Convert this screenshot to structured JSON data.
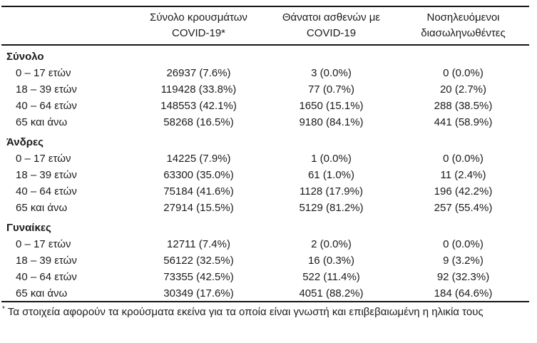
{
  "colors": {
    "text": "#1b1b1b",
    "rule": "#151515",
    "background": "#ffffff"
  },
  "table": {
    "headers": [
      {
        "line1": "Σύνολο κρουσμάτων",
        "line2": "COVID-19*"
      },
      {
        "line1": "Θάνατοι ασθενών με",
        "line2": "COVID-19"
      },
      {
        "line1": "Νοσηλευόμενοι",
        "line2": "διασωληνωθέντες"
      }
    ],
    "sections": [
      {
        "label": "Σύνολο",
        "rows": [
          {
            "label": "0 – 17 ετών",
            "cases": "26937 (7.6%)",
            "deaths": "3 (0.0%)",
            "intubated": "0 (0.0%)"
          },
          {
            "label": "18 – 39 ετών",
            "cases": "119428 (33.8%)",
            "deaths": "77 (0.7%)",
            "intubated": "20 (2.7%)"
          },
          {
            "label": "40 – 64 ετών",
            "cases": "148553 (42.1%)",
            "deaths": "1650 (15.1%)",
            "intubated": "288 (38.5%)"
          },
          {
            "label": "65 και άνω",
            "cases": "58268 (16.5%)",
            "deaths": "9180 (84.1%)",
            "intubated": "441 (58.9%)"
          }
        ]
      },
      {
        "label": "Άνδρες",
        "rows": [
          {
            "label": "0 – 17 ετών",
            "cases": "14225 (7.9%)",
            "deaths": "1 (0.0%)",
            "intubated": "0 (0.0%)"
          },
          {
            "label": "18 – 39 ετών",
            "cases": "63300 (35.0%)",
            "deaths": "61 (1.0%)",
            "intubated": "11 (2.4%)"
          },
          {
            "label": "40 – 64 ετών",
            "cases": "75184 (41.6%)",
            "deaths": "1128 (17.9%)",
            "intubated": "196 (42.2%)"
          },
          {
            "label": "65 και άνω",
            "cases": "27914 (15.5%)",
            "deaths": "5129 (81.2%)",
            "intubated": "257 (55.4%)"
          }
        ]
      },
      {
        "label": "Γυναίκες",
        "rows": [
          {
            "label": "0 – 17 ετών",
            "cases": "12711 (7.4%)",
            "deaths": "2 (0.0%)",
            "intubated": "0 (0.0%)"
          },
          {
            "label": "18 – 39 ετών",
            "cases": "56122 (32.5%)",
            "deaths": "16 (0.3%)",
            "intubated": "9 (3.2%)"
          },
          {
            "label": "40 – 64 ετών",
            "cases": "73355 (42.5%)",
            "deaths": "522 (11.4%)",
            "intubated": "92 (32.3%)"
          },
          {
            "label": "65 και άνω",
            "cases": "30349 (17.6%)",
            "deaths": "4051 (88.2%)",
            "intubated": "184 (64.6%)"
          }
        ]
      }
    ],
    "footnote": {
      "marker": "*",
      "text": "Τα στοιχεία αφορούν τα κρούσματα εκείνα για τα οποία είναι γνωστή και επιβεβαιωμένη η ηλικία τους"
    }
  }
}
